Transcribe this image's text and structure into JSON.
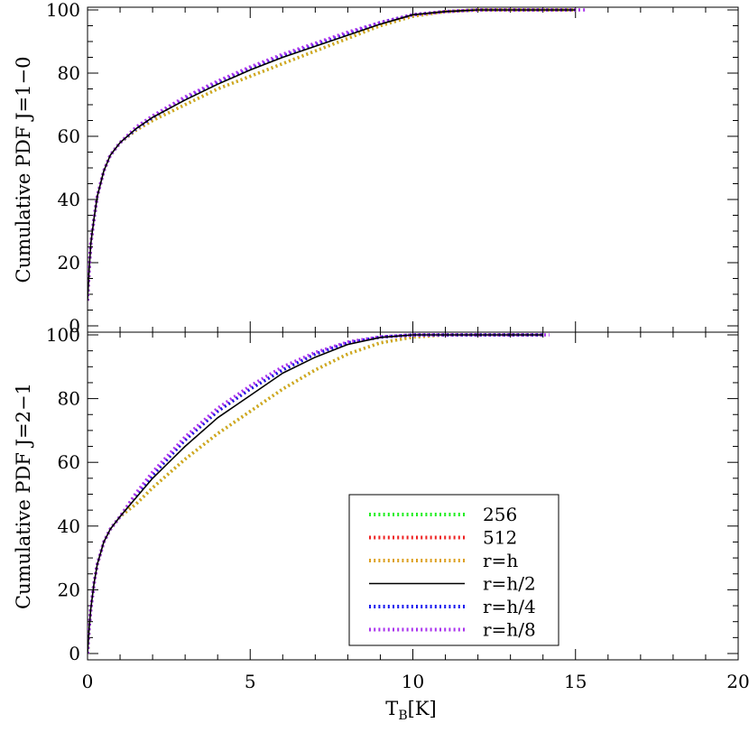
{
  "chart_data": [
    {
      "type": "line",
      "ylabel": "Cumulative PDF J=1−0",
      "xlim": [
        0,
        20
      ],
      "ylim": [
        0,
        100
      ],
      "xticks": [
        0,
        5,
        10,
        15,
        20
      ],
      "yticks": [
        0,
        20,
        40,
        60,
        80,
        100
      ],
      "series": [
        {
          "name": "256",
          "color": "#22ee22",
          "style": "dotted",
          "x": [
            0.0,
            0.05,
            0.1,
            0.2,
            0.3,
            0.5,
            0.7,
            1.0,
            1.5,
            2.0,
            3.0,
            4.0,
            5.0,
            6.0,
            7.0,
            8.0,
            9.0,
            10.0,
            11.0,
            12.0,
            13.0,
            14.0,
            15.0
          ],
          "y": [
            8,
            18,
            26,
            34,
            41,
            49,
            54,
            58,
            62,
            65,
            70,
            75,
            79,
            83,
            87,
            91,
            95,
            98,
            99.5,
            100,
            100,
            100,
            100
          ]
        },
        {
          "name": "512",
          "color": "#ee2222",
          "style": "dotted",
          "x": [
            0.0,
            0.05,
            0.1,
            0.2,
            0.3,
            0.5,
            0.7,
            1.0,
            1.5,
            2.0,
            3.0,
            4.0,
            5.0,
            6.0,
            7.0,
            8.0,
            9.0,
            10.0,
            11.0,
            12.0,
            13.0,
            14.0,
            15.0
          ],
          "y": [
            8,
            18,
            26,
            34,
            41,
            49,
            54,
            58,
            62.5,
            66,
            72,
            77,
            81.5,
            85.5,
            89,
            92.5,
            96,
            98.5,
            99.5,
            100,
            100,
            100,
            100
          ]
        },
        {
          "name": "r=h",
          "color": "#dda020",
          "style": "dotted",
          "x": [
            0.0,
            0.05,
            0.1,
            0.2,
            0.3,
            0.5,
            0.7,
            1.0,
            1.5,
            2.0,
            3.0,
            4.0,
            5.0,
            6.0,
            7.0,
            8.0,
            9.0,
            10.0,
            11.0,
            12.0,
            13.0,
            14.0,
            15.0
          ],
          "y": [
            8,
            18,
            26,
            34,
            41,
            49,
            54,
            58,
            62,
            65,
            70,
            75,
            79,
            83,
            87,
            91,
            95,
            98,
            99.5,
            100,
            100,
            100,
            100
          ]
        },
        {
          "name": "r=h/2",
          "color": "#000000",
          "style": "solid",
          "x": [
            0.0,
            0.05,
            0.1,
            0.2,
            0.3,
            0.5,
            0.7,
            1.0,
            1.5,
            2.0,
            3.0,
            4.0,
            5.0,
            6.0,
            7.0,
            8.0,
            9.0,
            10.0,
            11.0,
            12.0,
            13.0,
            14.0,
            15.0
          ],
          "y": [
            8,
            18,
            26,
            34,
            41,
            49,
            54,
            58,
            62.5,
            66,
            71.5,
            76.5,
            81,
            85,
            88.5,
            92,
            95.5,
            98.5,
            99.5,
            100,
            100,
            100,
            100
          ]
        },
        {
          "name": "r=h/4",
          "color": "#1a1aee",
          "style": "dotted",
          "x": [
            0.0,
            0.05,
            0.1,
            0.2,
            0.3,
            0.5,
            0.7,
            1.0,
            1.5,
            2.0,
            3.0,
            4.0,
            5.0,
            6.0,
            7.0,
            8.0,
            9.0,
            10.0,
            11.0,
            12.0,
            13.0,
            14.0,
            15.0
          ],
          "y": [
            8,
            18,
            26,
            34,
            41,
            49,
            54,
            58,
            62.5,
            66,
            72,
            77,
            81.5,
            85.5,
            89,
            92.5,
            96,
            98.5,
            99.5,
            100,
            100,
            100,
            100
          ]
        },
        {
          "name": "r=h/8",
          "color": "#aa33ee",
          "style": "dotted",
          "x": [
            0.0,
            0.05,
            0.1,
            0.2,
            0.3,
            0.5,
            0.7,
            1.0,
            1.5,
            2.0,
            3.0,
            4.0,
            5.0,
            6.0,
            7.0,
            8.0,
            9.0,
            10.0,
            11.0,
            12.0,
            13.0,
            14.0,
            15.0,
            15.3
          ],
          "y": [
            8,
            18,
            26,
            34,
            41,
            49,
            54,
            58,
            63,
            66.5,
            72.5,
            77.5,
            82,
            86,
            89.5,
            93,
            96,
            98.5,
            99.5,
            100,
            100,
            100,
            100,
            100
          ]
        }
      ]
    },
    {
      "type": "line",
      "xlabel": "T_B[K]",
      "ylabel": "Cumulative PDF J=2−1",
      "xlim": [
        0,
        20
      ],
      "ylim": [
        0,
        100
      ],
      "xticks": [
        0,
        5,
        10,
        15,
        20
      ],
      "yticks": [
        0,
        20,
        40,
        60,
        80,
        100
      ],
      "legend_position": "bottom-center",
      "series": [
        {
          "name": "256",
          "color": "#22ee22",
          "style": "dotted",
          "x": [
            0.0,
            0.05,
            0.1,
            0.2,
            0.3,
            0.5,
            0.7,
            1.0,
            1.5,
            2.0,
            3.0,
            4.0,
            5.0,
            6.0,
            7.0,
            8.0,
            9.0,
            10.0,
            11.0,
            12.0,
            13.0,
            14.0
          ],
          "y": [
            0,
            8,
            14,
            22,
            28,
            35,
            39,
            43,
            47,
            52,
            61,
            69,
            76,
            83,
            89,
            94,
            97.5,
            99.3,
            100,
            100,
            100,
            100
          ]
        },
        {
          "name": "512",
          "color": "#ee2222",
          "style": "dotted",
          "x": [
            0.0,
            0.05,
            0.1,
            0.2,
            0.3,
            0.5,
            0.7,
            1.0,
            1.5,
            2.0,
            3.0,
            4.0,
            5.0,
            6.0,
            7.0,
            8.0,
            9.0,
            10.0,
            11.0,
            12.0,
            13.0,
            14.0
          ],
          "y": [
            0,
            8,
            14,
            22,
            28,
            35,
            39,
            43,
            50,
            56,
            67,
            76,
            83,
            89,
            94,
            97.5,
            99.3,
            100,
            100,
            100,
            100,
            100
          ]
        },
        {
          "name": "r=h",
          "color": "#dda020",
          "style": "dotted",
          "x": [
            0.0,
            0.05,
            0.1,
            0.2,
            0.3,
            0.5,
            0.7,
            1.0,
            1.5,
            2.0,
            3.0,
            4.0,
            5.0,
            6.0,
            7.0,
            8.0,
            9.0,
            10.0,
            11.0,
            12.0,
            13.0,
            14.0
          ],
          "y": [
            0,
            8,
            14,
            22,
            28,
            35,
            39,
            43,
            47,
            52,
            61,
            69,
            76,
            83,
            89,
            94,
            97.5,
            99.3,
            100,
            100,
            100,
            100
          ]
        },
        {
          "name": "r=h/2",
          "color": "#000000",
          "style": "solid",
          "x": [
            0.0,
            0.05,
            0.1,
            0.2,
            0.3,
            0.5,
            0.7,
            1.0,
            1.5,
            2.0,
            3.0,
            4.0,
            5.0,
            6.0,
            7.0,
            8.0,
            9.0,
            10.0,
            11.0,
            12.0,
            13.0,
            14.0
          ],
          "y": [
            0,
            8,
            14,
            22,
            28,
            35,
            39,
            43,
            49,
            55,
            65,
            74,
            81,
            88,
            93,
            97,
            99.2,
            100,
            100,
            100,
            100,
            100
          ]
        },
        {
          "name": "r=h/4",
          "color": "#1a1aee",
          "style": "dotted",
          "x": [
            0.0,
            0.05,
            0.1,
            0.2,
            0.3,
            0.5,
            0.7,
            1.0,
            1.5,
            2.0,
            3.0,
            4.0,
            5.0,
            6.0,
            7.0,
            8.0,
            9.0,
            10.0,
            11.0,
            12.0,
            13.0,
            14.0
          ],
          "y": [
            0,
            8,
            14,
            22,
            28,
            35,
            39,
            43,
            50,
            56,
            67,
            76,
            83,
            89,
            94,
            97.5,
            99.3,
            100,
            100,
            100,
            100,
            100
          ]
        },
        {
          "name": "r=h/8",
          "color": "#aa33ee",
          "style": "dotted",
          "x": [
            0.0,
            0.05,
            0.1,
            0.2,
            0.3,
            0.5,
            0.7,
            1.0,
            1.5,
            2.0,
            3.0,
            4.0,
            5.0,
            6.0,
            7.0,
            8.0,
            9.0,
            10.0,
            11.0,
            12.0,
            13.0,
            14.0,
            14.2
          ],
          "y": [
            0,
            8,
            14,
            22,
            28,
            35,
            39,
            43,
            50.5,
            57,
            68,
            77,
            84,
            90,
            94.5,
            97.8,
            99.4,
            100,
            100,
            100,
            100,
            100,
            100
          ]
        }
      ]
    }
  ]
}
